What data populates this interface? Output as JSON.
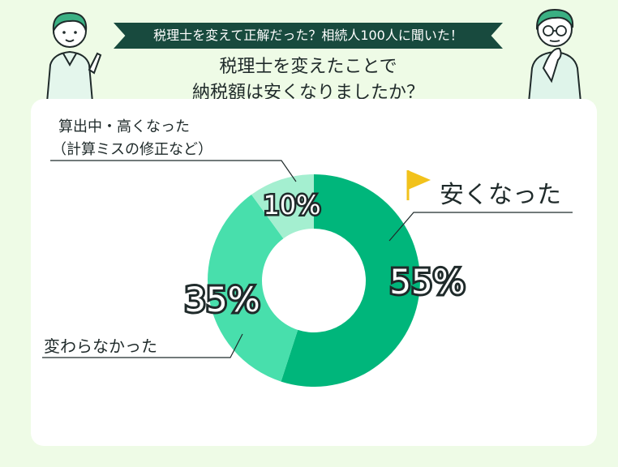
{
  "header": {
    "banner": "税理士を変えて正解だった？相続人100人に聞いた！",
    "title_line1": "税理士を変えたことで",
    "title_line2": "納税額は安くなりましたか？"
  },
  "chart_data": {
    "type": "pie",
    "donut": true,
    "categories": [
      "安くなった",
      "変わらなかった",
      "算出中・高くなった（計算ミスの修正など）"
    ],
    "values": [
      55,
      35,
      10
    ],
    "value_labels": [
      "55%",
      "35%",
      "10%"
    ],
    "colors": [
      "#00b67b",
      "#48dfac",
      "#a4efd0"
    ],
    "callouts": {
      "cheaper": "安くなった",
      "unchanged": "変わらなかった",
      "higher_line1": "算出中・高くなった",
      "higher_line2": "（計算ミスの修正など）"
    },
    "highlight_color": "#f2c21b"
  }
}
